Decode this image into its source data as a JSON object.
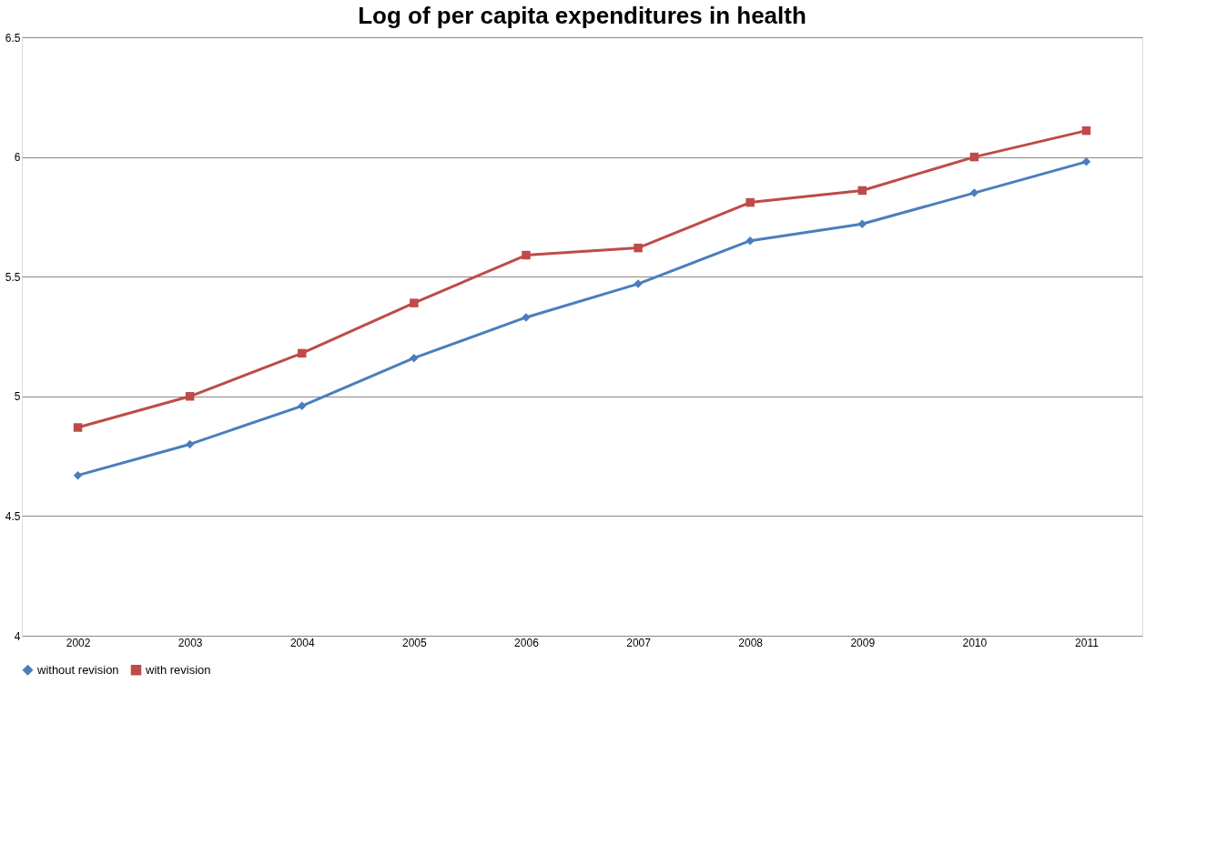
{
  "chart_data": {
    "type": "line",
    "title": "Log of per capita expenditures in health",
    "categories": [
      "2002",
      "2003",
      "2004",
      "2005",
      "2006",
      "2007",
      "2008",
      "2009",
      "2010",
      "2011"
    ],
    "series": [
      {
        "name": "without revision",
        "color": "#4a7ebb",
        "marker": "diamond",
        "values": [
          4.67,
          4.8,
          4.96,
          5.16,
          5.33,
          5.47,
          5.65,
          5.72,
          5.85,
          5.98
        ]
      },
      {
        "name": "with revision",
        "color": "#be4b48",
        "marker": "square",
        "values": [
          4.87,
          5.0,
          5.18,
          5.39,
          5.59,
          5.62,
          5.81,
          5.86,
          6.0,
          6.11
        ]
      }
    ],
    "ylim": [
      4,
      6.5
    ],
    "yticks": [
      4,
      4.5,
      5,
      5.5,
      6,
      6.5
    ],
    "grid": "y",
    "legend": "bottom",
    "line_style": "solid"
  }
}
